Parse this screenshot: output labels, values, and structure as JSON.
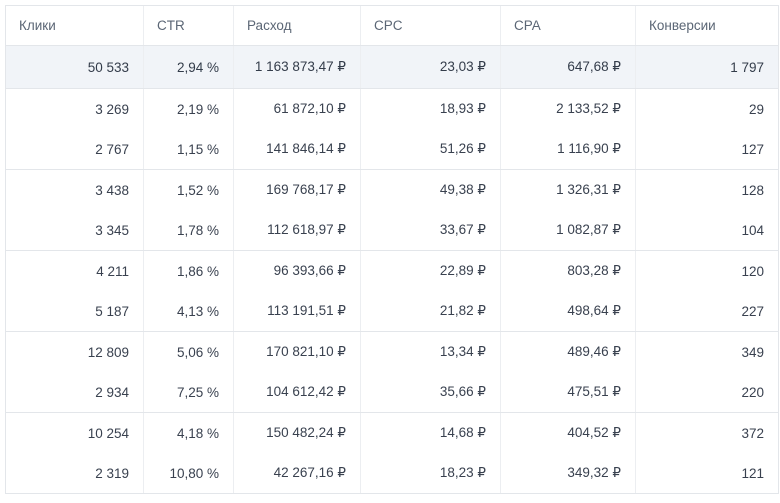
{
  "colors": {
    "summary_row_background": "#f1f4f8",
    "border": "#e3e6ea",
    "column_divider": "#eceef1",
    "header_text": "#5b6675",
    "cell_text": "#39414f"
  },
  "table": {
    "columns": [
      {
        "label": "Клики"
      },
      {
        "label": "CTR"
      },
      {
        "label": "Расход"
      },
      {
        "label": "CPC"
      },
      {
        "label": "CPA"
      },
      {
        "label": "Конверсии"
      }
    ],
    "summary": [
      "50 533",
      "2,94 %",
      "1 163 873,47 ₽",
      "23,03 ₽",
      "647,68 ₽",
      "1 797"
    ],
    "groups": [
      [
        [
          "3 269",
          "2,19 %",
          "61 872,10 ₽",
          "18,93 ₽",
          "2 133,52 ₽",
          "29"
        ],
        [
          "2 767",
          "1,15 %",
          "141 846,14 ₽",
          "51,26 ₽",
          "1 116,90 ₽",
          "127"
        ]
      ],
      [
        [
          "3 438",
          "1,52 %",
          "169 768,17 ₽",
          "49,38 ₽",
          "1 326,31 ₽",
          "128"
        ],
        [
          "3 345",
          "1,78 %",
          "112 618,97 ₽",
          "33,67 ₽",
          "1 082,87 ₽",
          "104"
        ]
      ],
      [
        [
          "4 211",
          "1,86 %",
          "96 393,66 ₽",
          "22,89 ₽",
          "803,28 ₽",
          "120"
        ],
        [
          "5 187",
          "4,13 %",
          "113 191,51 ₽",
          "21,82 ₽",
          "498,64 ₽",
          "227"
        ]
      ],
      [
        [
          "12 809",
          "5,06 %",
          "170 821,10 ₽",
          "13,34 ₽",
          "489,46 ₽",
          "349"
        ],
        [
          "2 934",
          "7,25 %",
          "104 612,42 ₽",
          "35,66 ₽",
          "475,51 ₽",
          "220"
        ]
      ],
      [
        [
          "10 254",
          "4,18 %",
          "150 482,24 ₽",
          "14,68 ₽",
          "404,52 ₽",
          "372"
        ],
        [
          "2 319",
          "10,80 %",
          "42 267,16 ₽",
          "18,23 ₽",
          "349,32 ₽",
          "121"
        ]
      ]
    ]
  }
}
